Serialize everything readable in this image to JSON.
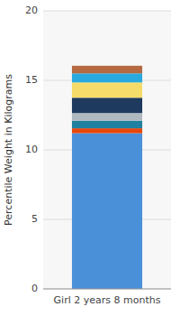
{
  "chart_data": {
    "type": "bar",
    "stacked": true,
    "categories": [
      "Girl 2 years 8 months"
    ],
    "series": [
      {
        "color": "#4A90D9",
        "values": [
          11.2
        ]
      },
      {
        "color": "#E8460A",
        "values": [
          0.35
        ]
      },
      {
        "color": "#2080A0",
        "values": [
          0.55
        ]
      },
      {
        "color": "#B0B8C0",
        "values": [
          0.55
        ]
      },
      {
        "color": "#1E3A5F",
        "values": [
          1.1
        ]
      },
      {
        "color": "#F5DC6A",
        "values": [
          1.1
        ]
      },
      {
        "color": "#29AADF",
        "values": [
          0.65
        ]
      },
      {
        "color": "#B56A42",
        "values": [
          0.55
        ]
      }
    ],
    "ylabel": "Percentile Weight in Kilograms",
    "ylim": [
      0,
      20
    ],
    "yticks": [
      0,
      5,
      10,
      15,
      20
    ],
    "grid": true
  }
}
